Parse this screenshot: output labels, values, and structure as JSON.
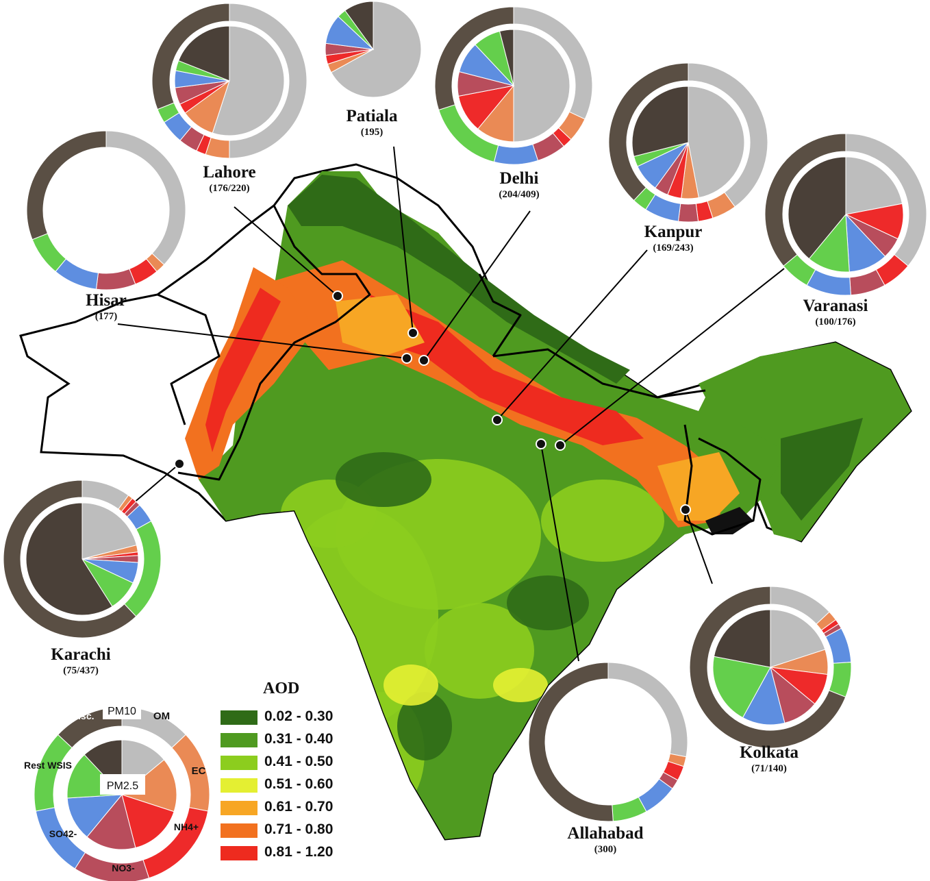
{
  "colors": {
    "PM10": "#5a4f44",
    "OM": "#bdbdbd",
    "EC": "#ea8a55",
    "NH4": "#ee2a2a",
    "NO3": "#b84d5c",
    "SO4": "#5e8ee0",
    "RestWSIS": "#64cf4c",
    "Misc": "#4a4038",
    "outline": "#000000",
    "sea": "#ffffff"
  },
  "component_order": [
    "OM",
    "EC",
    "NH4",
    "NO3",
    "SO4",
    "RestWSIS",
    "Misc"
  ],
  "legend": {
    "title": "AOD",
    "bins": [
      {
        "label": "0.02 - 0.30",
        "color": "#2f6b17"
      },
      {
        "label": "0.31 - 0.40",
        "color": "#4f9a20"
      },
      {
        "label": "0.41 - 0.50",
        "color": "#8ccd1e"
      },
      {
        "label": "0.51 - 0.60",
        "color": "#e4ef32"
      },
      {
        "label": "0.61 - 0.70",
        "color": "#f7a624"
      },
      {
        "label": "0.71 - 0.80",
        "color": "#f2711f"
      },
      {
        "label": "0.81 - 1.20",
        "color": "#ee2b1f"
      }
    ]
  },
  "key_chart": {
    "labels": {
      "PM10": "PM10",
      "PM25": "PM2.5",
      "OM": "OM",
      "EC": "EC",
      "NH4": "NH4+",
      "NO3": "NO3-",
      "SO4": "SO42-",
      "RestWSIS": "Rest WSIS",
      "Misc": "Misc."
    },
    "outer": {
      "OM": 13,
      "EC": 15,
      "NH4": 17,
      "NO3": 14,
      "SO4": 13,
      "RestWSIS": 15,
      "Misc": 13
    },
    "inner": {
      "OM": 14,
      "EC": 16,
      "NH4": 16,
      "NO3": 15,
      "SO4": 13,
      "RestWSIS": 14,
      "Misc": 12
    }
  },
  "cities": [
    {
      "name": "Lahore",
      "count": "(176/220)",
      "outer": {
        "OM": 50,
        "EC": 5,
        "NH4": 2,
        "NO3": 4,
        "SO4": 5,
        "RestWSIS": 3,
        "Misc": 31
      },
      "inner": {
        "OM": 55,
        "EC": 10,
        "NH4": 3,
        "NO3": 5,
        "SO4": 5,
        "RestWSIS": 3,
        "Misc": 19
      }
    },
    {
      "name": "Patiala",
      "count": "(195)",
      "outer": null,
      "inner": {
        "OM": 67,
        "EC": 3,
        "NH4": 3,
        "NO3": 4,
        "SO4": 10,
        "RestWSIS": 3,
        "Misc": 10
      }
    },
    {
      "name": "Delhi",
      "count": "(204/409)",
      "outer": {
        "OM": 32,
        "EC": 5,
        "NH4": 2,
        "NO3": 6,
        "SO4": 9,
        "RestWSIS": 16,
        "Misc": 30
      },
      "inner": {
        "OM": 50,
        "EC": 11,
        "NH4": 11,
        "NO3": 7,
        "SO4": 9,
        "RestWSIS": 8,
        "Misc": 4
      }
    },
    {
      "name": "Kanpur",
      "count": "(169/243)",
      "outer": {
        "OM": 40,
        "EC": 5,
        "NH4": 3,
        "NO3": 4,
        "SO4": 7,
        "RestWSIS": 3,
        "Misc": 38
      },
      "inner": {
        "OM": 47,
        "EC": 5,
        "NH4": 4,
        "NO3": 4,
        "SO4": 8,
        "RestWSIS": 3,
        "Misc": 29
      }
    },
    {
      "name": "Varanasi",
      "count": "(100/176)",
      "outer": {
        "OM": 36,
        "EC": 0,
        "NH4": 6,
        "NO3": 7,
        "SO4": 9,
        "RestWSIS": 6,
        "Misc": 36
      },
      "inner": {
        "OM": 22,
        "EC": 0,
        "NH4": 10,
        "NO3": 6,
        "SO4": 11,
        "RestWSIS": 12,
        "Misc": 39
      }
    },
    {
      "name": "Hisar",
      "count": "(177)",
      "outer": {
        "OM": 37,
        "EC": 2,
        "NH4": 5,
        "NO3": 8,
        "SO4": 9,
        "RestWSIS": 8,
        "Misc": 31
      },
      "inner": null
    },
    {
      "name": "Karachi",
      "count": "(75/437)",
      "outer": {
        "OM": 10,
        "EC": 1,
        "NH4": 1,
        "NO3": 1,
        "SO4": 4,
        "RestWSIS": 21,
        "Misc": 62
      },
      "inner": {
        "OM": 21,
        "EC": 2,
        "NH4": 1,
        "NO3": 2,
        "SO4": 6,
        "RestWSIS": 9,
        "Misc": 59
      }
    },
    {
      "name": "Allahabad",
      "count": "(300)",
      "outer": {
        "OM": 28,
        "EC": 2,
        "NH4": 3,
        "NO3": 2,
        "SO4": 7,
        "RestWSIS": 7,
        "Misc": 51
      },
      "inner": null
    },
    {
      "name": "Kolkata",
      "count": "(71/140)",
      "outer": {
        "OM": 13,
        "EC": 2,
        "NH4": 1,
        "NO3": 1,
        "SO4": 7,
        "RestWSIS": 7,
        "Misc": 69
      },
      "inner": {
        "OM": 20,
        "EC": 7,
        "NH4": 9,
        "NO3": 10,
        "SO4": 12,
        "RestWSIS": 20,
        "Misc": 22
      }
    }
  ]
}
